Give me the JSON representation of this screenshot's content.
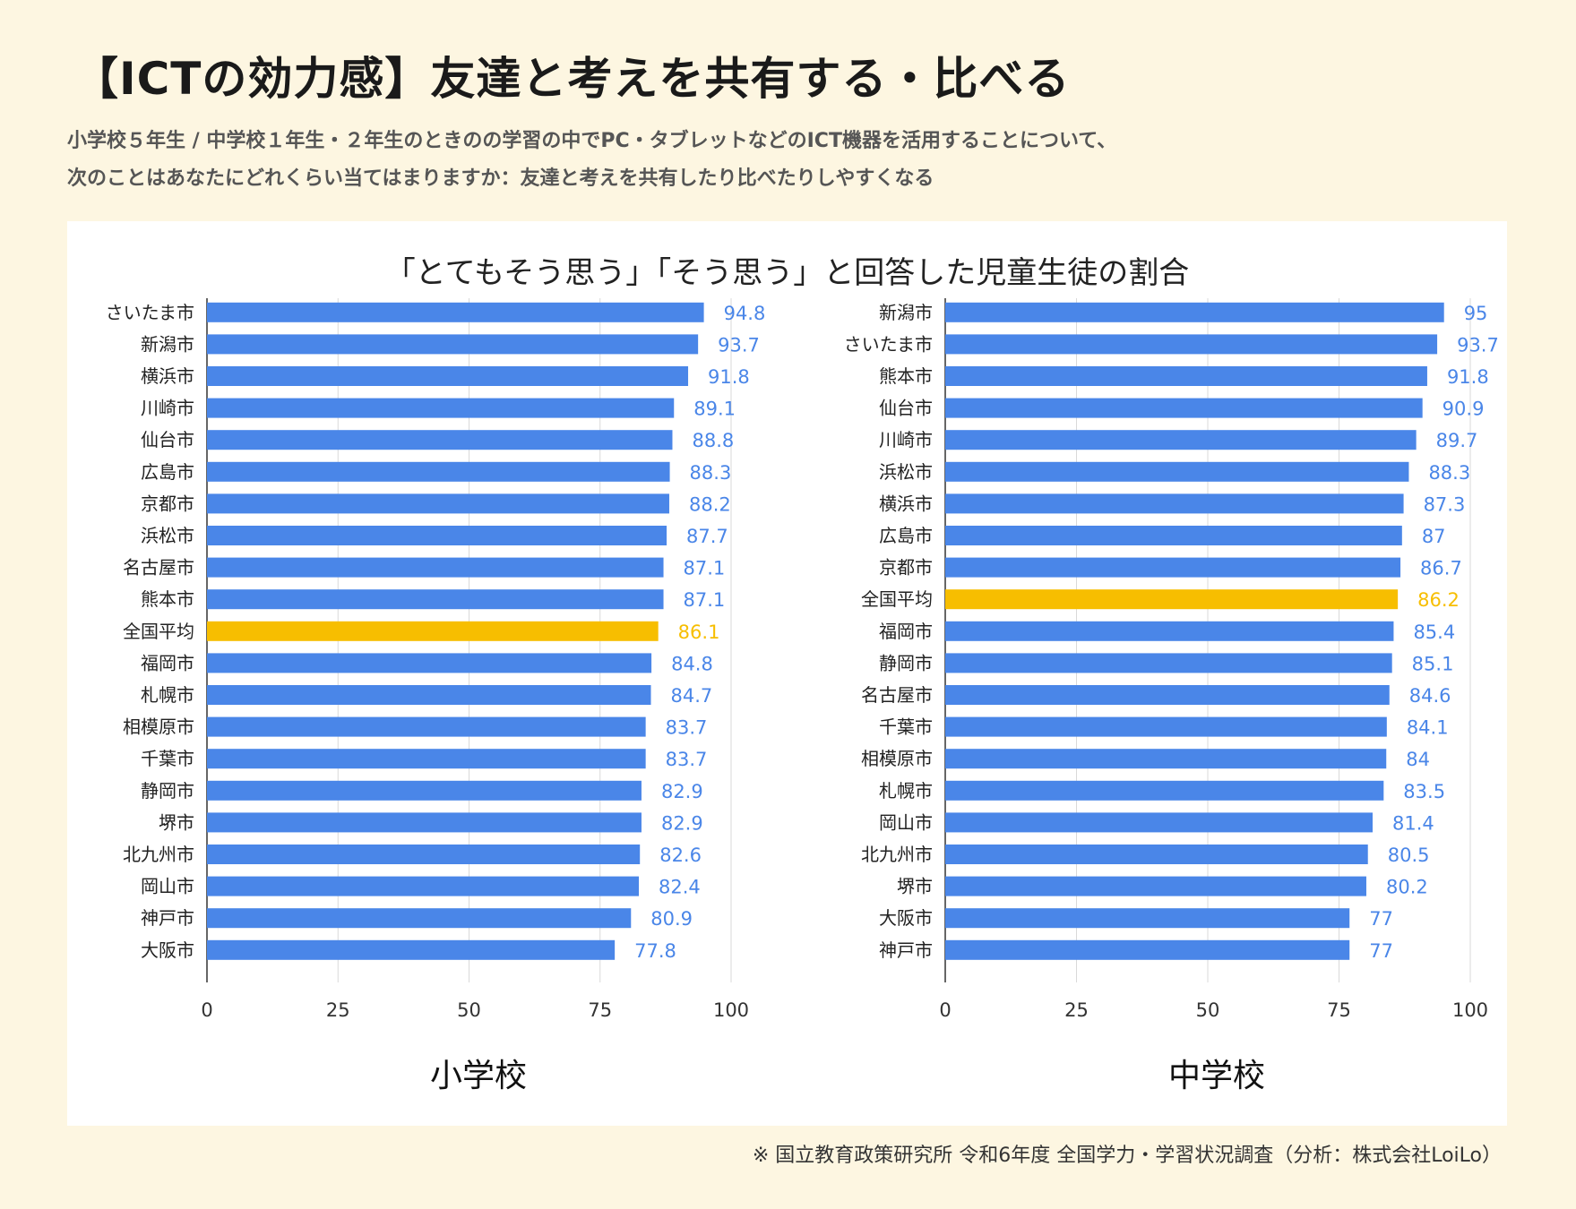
{
  "header": {
    "title": "【ICTの効力感】友達と考えを共有する・比べる",
    "subtitle_line1": "小学校５年生 / 中学校１年生・２年生のときのの学習の中でPC・タブレットなどのICT機器を活用することについて、",
    "subtitle_line2": "次のことはあなたにどれくらい当てはまりますか：友達と考えを共有したり比べたりしやすくなる"
  },
  "footer": {
    "source": "※ 国立教育政策研究所 令和6年度 全国学力・学習状況調査（分析：株式会社LoiLo）"
  },
  "colors": {
    "bar": "#4a86e8",
    "highlight": "#f7be00",
    "grid": "#d9d9d9"
  },
  "chart_data": {
    "title": "「とてもそう思う」「そう思う」と回答した児童生徒の割合",
    "charts": [
      {
        "type": "bar",
        "orientation": "horizontal",
        "label": "小学校",
        "xlim": [
          0,
          100
        ],
        "ticks": [
          "0",
          "25",
          "50",
          "75",
          "100"
        ],
        "highlight": "全国平均",
        "categories": [
          "さいたま市",
          "新潟市",
          "横浜市",
          "川崎市",
          "仙台市",
          "広島市",
          "京都市",
          "浜松市",
          "名古屋市",
          "熊本市",
          "全国平均",
          "福岡市",
          "札幌市",
          "相模原市",
          "千葉市",
          "静岡市",
          "堺市",
          "北九州市",
          "岡山市",
          "神戸市",
          "大阪市"
        ],
        "values": [
          94.8,
          93.7,
          91.8,
          89.1,
          88.8,
          88.3,
          88.2,
          87.7,
          87.1,
          87.1,
          86.1,
          84.8,
          84.7,
          83.7,
          83.7,
          82.9,
          82.9,
          82.6,
          82.4,
          80.9,
          77.8
        ]
      },
      {
        "type": "bar",
        "orientation": "horizontal",
        "label": "中学校",
        "xlim": [
          0,
          100
        ],
        "ticks": [
          "0",
          "25",
          "50",
          "75",
          "100"
        ],
        "highlight": "全国平均",
        "categories": [
          "新潟市",
          "さいたま市",
          "熊本市",
          "仙台市",
          "川崎市",
          "浜松市",
          "横浜市",
          "広島市",
          "京都市",
          "全国平均",
          "福岡市",
          "静岡市",
          "名古屋市",
          "千葉市",
          "相模原市",
          "札幌市",
          "岡山市",
          "北九州市",
          "堺市",
          "大阪市",
          "神戸市"
        ],
        "values": [
          95,
          93.7,
          91.8,
          90.9,
          89.7,
          88.3,
          87.3,
          87,
          86.7,
          86.2,
          85.4,
          85.1,
          84.6,
          84.1,
          84,
          83.5,
          81.4,
          80.5,
          80.2,
          77,
          77
        ]
      }
    ]
  }
}
